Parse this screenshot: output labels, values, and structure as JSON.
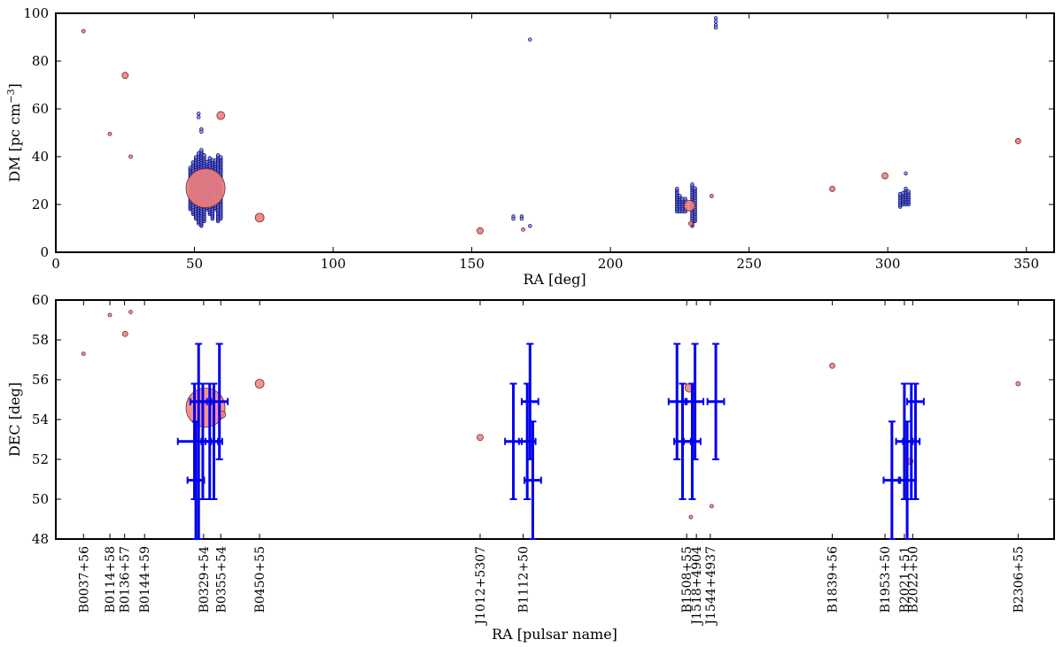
{
  "chart_data": [
    {
      "type": "scatter",
      "xlabel": "RA [deg]",
      "ylabel": "DM [pc cm",
      "ylabel_sup": "−3",
      "ylabel_close": "]",
      "xlim": [
        0,
        360
      ],
      "ylim": [
        0,
        100
      ],
      "xticks": [
        0,
        50,
        100,
        150,
        200,
        250,
        300,
        350
      ],
      "yticks": [
        0,
        20,
        40,
        60,
        80,
        100
      ],
      "colors": {
        "pulsar": "#f08080",
        "candidate": "#0a0a80",
        "candidate_fill": "#8fa0e8"
      },
      "pulsars": [
        {
          "ra": 10,
          "dm": 92.5,
          "r": 2
        },
        {
          "ra": 19.5,
          "dm": 49.5,
          "r": 2
        },
        {
          "ra": 25,
          "dm": 74,
          "r": 3.5
        },
        {
          "ra": 27,
          "dm": 40,
          "r": 2
        },
        {
          "ra": 54,
          "dm": 26.8,
          "r": 22
        },
        {
          "ra": 59.5,
          "dm": 57.2,
          "r": 4.5
        },
        {
          "ra": 73.5,
          "dm": 14.5,
          "r": 5
        },
        {
          "ra": 153,
          "dm": 9,
          "r": 3.5
        },
        {
          "ra": 168.5,
          "dm": 9.5,
          "r": 2
        },
        {
          "ra": 228.5,
          "dm": 19.5,
          "r": 6
        },
        {
          "ra": 229,
          "dm": 12,
          "r": 2.5
        },
        {
          "ra": 236.5,
          "dm": 23.5,
          "r": 2
        },
        {
          "ra": 280,
          "dm": 26.5,
          "r": 3
        },
        {
          "ra": 299,
          "dm": 32,
          "r": 3.5
        },
        {
          "ra": 347,
          "dm": 46.5,
          "r": 3
        }
      ],
      "candidate_columns": [
        {
          "ra": 48.5,
          "dm_min": 18,
          "dm_max": 36
        },
        {
          "ra": 49.5,
          "dm_min": 16,
          "dm_max": 38
        },
        {
          "ra": 50.5,
          "dm_min": 14,
          "dm_max": 40
        },
        {
          "ra": 51.5,
          "dm_min": 12,
          "dm_max": 42
        },
        {
          "ra": 52.5,
          "dm_min": 11,
          "dm_max": 43
        },
        {
          "ra": 53.5,
          "dm_min": 13,
          "dm_max": 41
        },
        {
          "ra": 54.5,
          "dm_min": 18,
          "dm_max": 38
        },
        {
          "ra": 55.5,
          "dm_min": 16,
          "dm_max": 40
        },
        {
          "ra": 56.5,
          "dm_min": 14,
          "dm_max": 39
        },
        {
          "ra": 57.5,
          "dm_min": 18,
          "dm_max": 39
        },
        {
          "ra": 58.5,
          "dm_min": 13,
          "dm_max": 41
        },
        {
          "ra": 59.5,
          "dm_min": 14,
          "dm_max": 40
        },
        {
          "ra": 224,
          "dm_min": 17,
          "dm_max": 27
        },
        {
          "ra": 225,
          "dm_min": 17,
          "dm_max": 24
        },
        {
          "ra": 226,
          "dm_min": 17,
          "dm_max": 23
        },
        {
          "ra": 227,
          "dm_min": 17,
          "dm_max": 23
        },
        {
          "ra": 229.5,
          "dm_min": 11,
          "dm_max": 29
        },
        {
          "ra": 230.5,
          "dm_min": 13,
          "dm_max": 27
        },
        {
          "ra": 304.5,
          "dm_min": 19,
          "dm_max": 25
        },
        {
          "ra": 305.5,
          "dm_min": 20,
          "dm_max": 25
        },
        {
          "ra": 306.5,
          "dm_min": 20,
          "dm_max": 27
        },
        {
          "ra": 307.5,
          "dm_min": 20,
          "dm_max": 26
        }
      ],
      "candidates": [
        {
          "ra": 51.5,
          "dm": 58
        },
        {
          "ra": 51.5,
          "dm": 56.5
        },
        {
          "ra": 52.5,
          "dm": 51.5
        },
        {
          "ra": 52.5,
          "dm": 50.5
        },
        {
          "ra": 165,
          "dm": 15
        },
        {
          "ra": 165,
          "dm": 14
        },
        {
          "ra": 168,
          "dm": 15
        },
        {
          "ra": 168,
          "dm": 14
        },
        {
          "ra": 171,
          "dm": 11
        },
        {
          "ra": 171,
          "dm": 89
        },
        {
          "ra": 238,
          "dm": 98
        },
        {
          "ra": 238,
          "dm": 96.5
        },
        {
          "ra": 238,
          "dm": 95
        },
        {
          "ra": 238,
          "dm": 94
        },
        {
          "ra": 306.5,
          "dm": 33
        }
      ]
    },
    {
      "type": "scatter",
      "xlabel": "RA [pulsar name]",
      "ylabel": "DEC [deg]",
      "xlim": [
        0,
        360
      ],
      "ylim": [
        48,
        60
      ],
      "yticks": [
        48,
        50,
        52,
        54,
        56,
        58,
        60
      ],
      "colors": {
        "pulsar": "#f08080",
        "error_bar": "#0000ee"
      },
      "pulsars": [
        {
          "ra": 10,
          "dec": 57.3,
          "r": 2
        },
        {
          "ra": 19.5,
          "dec": 59.25,
          "r": 2
        },
        {
          "ra": 25,
          "dec": 58.3,
          "r": 3
        },
        {
          "ra": 27,
          "dec": 59.4,
          "r": 2
        },
        {
          "ra": 54,
          "dec": 54.6,
          "r": 22
        },
        {
          "ra": 60,
          "dec": 54.25,
          "r": 4
        },
        {
          "ra": 73.5,
          "dec": 55.8,
          "r": 5
        },
        {
          "ra": 153,
          "dec": 53.1,
          "r": 3.5
        },
        {
          "ra": 228.5,
          "dec": 55.6,
          "r": 5
        },
        {
          "ra": 229,
          "dec": 49.1,
          "r": 2
        },
        {
          "ra": 236.5,
          "dec": 49.65,
          "r": 2
        },
        {
          "ra": 280,
          "dec": 56.7,
          "r": 3
        },
        {
          "ra": 308,
          "dec": 51.9,
          "r": 3.5
        },
        {
          "ra": 347,
          "dec": 55.8,
          "r": 2.5
        }
      ],
      "error_points": [
        {
          "ra": 50,
          "dec": 52.9,
          "xerr": 6,
          "dec_lo": 50,
          "dec_hi": 55.8
        },
        {
          "ra": 50.5,
          "dec": 50.95,
          "xerr": 3,
          "dec_lo": 48,
          "dec_hi": 53.9
        },
        {
          "ra": 51.5,
          "dec": 54.9,
          "xerr": 3,
          "dec_lo": 48,
          "dec_hi": 57.8
        },
        {
          "ra": 53,
          "dec": 54.9,
          "xerr": 3,
          "dec_lo": 50,
          "dec_hi": 55.8
        },
        {
          "ra": 55.5,
          "dec": 52.9,
          "xerr": 3,
          "dec_lo": 50,
          "dec_hi": 55.8
        },
        {
          "ra": 57,
          "dec": 52.9,
          "xerr": 3,
          "dec_lo": 50,
          "dec_hi": 55.8
        },
        {
          "ra": 59,
          "dec": 54.9,
          "xerr": 3,
          "dec_lo": 52,
          "dec_hi": 57.8
        },
        {
          "ra": 165,
          "dec": 52.9,
          "xerr": 3,
          "dec_lo": 50,
          "dec_hi": 55.8
        },
        {
          "ra": 170,
          "dec": 52.9,
          "xerr": 3,
          "dec_lo": 50,
          "dec_hi": 55.8
        },
        {
          "ra": 171,
          "dec": 54.9,
          "xerr": 3,
          "dec_lo": 52,
          "dec_hi": 57.8
        },
        {
          "ra": 172,
          "dec": 50.95,
          "xerr": 3,
          "dec_lo": 48,
          "dec_hi": 53.9
        },
        {
          "ra": 224,
          "dec": 54.9,
          "xerr": 3,
          "dec_lo": 52,
          "dec_hi": 57.8
        },
        {
          "ra": 226,
          "dec": 52.9,
          "xerr": 3,
          "dec_lo": 50,
          "dec_hi": 55.8
        },
        {
          "ra": 229.5,
          "dec": 52.9,
          "xerr": 3,
          "dec_lo": 50,
          "dec_hi": 55.8
        },
        {
          "ra": 230.5,
          "dec": 54.9,
          "xerr": 3,
          "dec_lo": 52,
          "dec_hi": 57.8
        },
        {
          "ra": 238,
          "dec": 54.9,
          "xerr": 3,
          "dec_lo": 52,
          "dec_hi": 57.8
        },
        {
          "ra": 301.5,
          "dec": 50.95,
          "xerr": 3,
          "dec_lo": 48,
          "dec_hi": 53.9
        },
        {
          "ra": 306,
          "dec": 52.9,
          "xerr": 3,
          "dec_lo": 50,
          "dec_hi": 55.8
        },
        {
          "ra": 307,
          "dec": 50.95,
          "xerr": 3,
          "dec_lo": 48,
          "dec_hi": 53.9
        },
        {
          "ra": 308.5,
          "dec": 52.9,
          "xerr": 3,
          "dec_lo": 50,
          "dec_hi": 55.8
        },
        {
          "ra": 310,
          "dec": 54.9,
          "xerr": 3,
          "dec_lo": 50,
          "dec_hi": 55.8
        }
      ],
      "pulsar_names": [
        {
          "ra": 10,
          "name": "B0037+56"
        },
        {
          "ra": 19.5,
          "name": "B0114+58"
        },
        {
          "ra": 24.8,
          "name": "B0136+57"
        },
        {
          "ra": 32,
          "name": "B0144+59"
        },
        {
          "ra": 53.3,
          "name": "B0329+54"
        },
        {
          "ra": 59.5,
          "name": "B0355+54"
        },
        {
          "ra": 73.5,
          "name": "B0450+55"
        },
        {
          "ra": 153,
          "name": "J1012+5307"
        },
        {
          "ra": 168.5,
          "name": "B1112+50"
        },
        {
          "ra": 227.5,
          "name": "B1508+55"
        },
        {
          "ra": 231,
          "name": "J1518+4904"
        },
        {
          "ra": 236,
          "name": "J1544+4937"
        },
        {
          "ra": 280,
          "name": "B1839+56"
        },
        {
          "ra": 299,
          "name": "B1953+50"
        },
        {
          "ra": 306,
          "name": "B2021+51"
        },
        {
          "ra": 309,
          "name": "B2022+50"
        },
        {
          "ra": 347,
          "name": "B2306+55"
        }
      ]
    }
  ]
}
